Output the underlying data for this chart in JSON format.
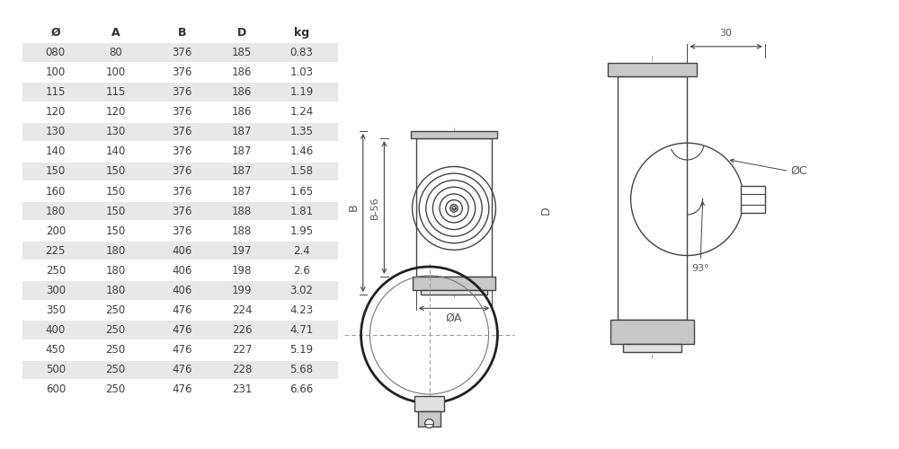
{
  "table_headers": [
    "Ø",
    "A",
    "B",
    "D",
    "kg"
  ],
  "table_rows": [
    [
      "080",
      "80",
      "376",
      "185",
      "0.83"
    ],
    [
      "100",
      "100",
      "376",
      "186",
      "1.03"
    ],
    [
      "115",
      "115",
      "376",
      "186",
      "1.19"
    ],
    [
      "120",
      "120",
      "376",
      "186",
      "1.24"
    ],
    [
      "130",
      "130",
      "376",
      "187",
      "1.35"
    ],
    [
      "140",
      "140",
      "376",
      "187",
      "1.46"
    ],
    [
      "150",
      "150",
      "376",
      "187",
      "1.58"
    ],
    [
      "160",
      "150",
      "376",
      "187",
      "1.65"
    ],
    [
      "180",
      "150",
      "376",
      "188",
      "1.81"
    ],
    [
      "200",
      "150",
      "376",
      "188",
      "1.95"
    ],
    [
      "225",
      "180",
      "406",
      "197",
      "2.4"
    ],
    [
      "250",
      "180",
      "406",
      "198",
      "2.6"
    ],
    [
      "300",
      "180",
      "406",
      "199",
      "3.02"
    ],
    [
      "350",
      "250",
      "476",
      "224",
      "4.23"
    ],
    [
      "400",
      "250",
      "476",
      "226",
      "4.71"
    ],
    [
      "450",
      "250",
      "476",
      "227",
      "5.19"
    ],
    [
      "500",
      "250",
      "476",
      "228",
      "5.68"
    ],
    [
      "600",
      "250",
      "476",
      "231",
      "6.66"
    ]
  ],
  "shaded_rows": [
    0,
    2,
    4,
    6,
    8,
    10,
    12,
    14,
    16
  ],
  "bg_color": "#ffffff",
  "row_shade_color": "#e8e8e8",
  "text_color": "#404040",
  "header_color": "#303030",
  "line_color": "#444444",
  "dim_color": "#555555",
  "gray_fill": "#c8c8c8",
  "light_gray": "#e0e0e0"
}
